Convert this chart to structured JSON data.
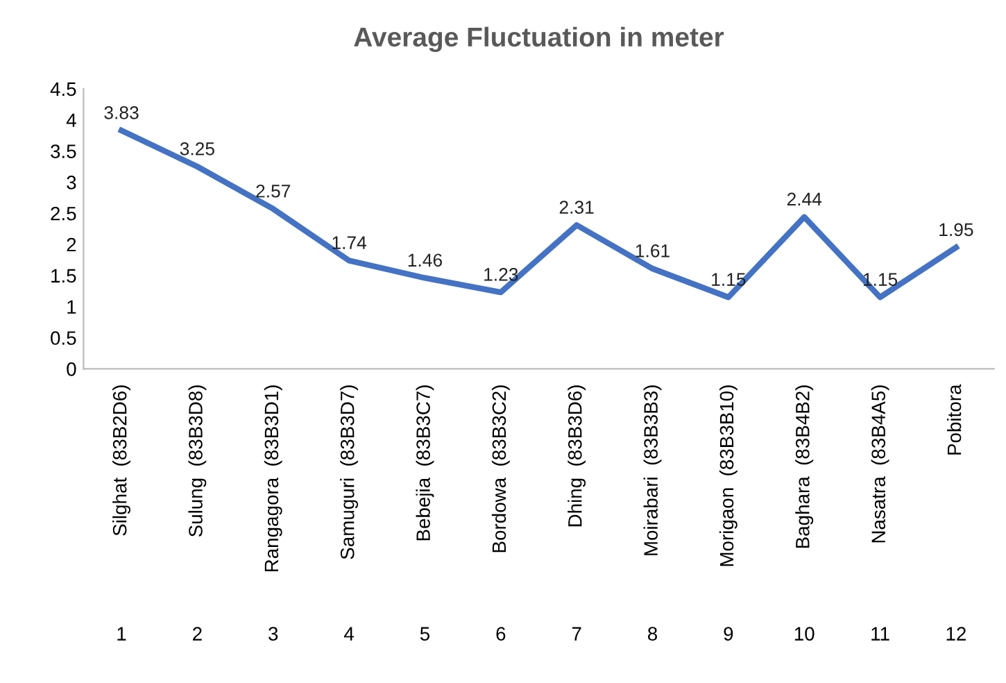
{
  "chart_data": {
    "type": "line",
    "title": "Average Fluctuation in meter",
    "categories": [
      "Silghat  (83B2D6)",
      "Sulung  (83B3D8)",
      "Rangagora  (83B3D1)",
      "Samuguri  (83B3D7)",
      "Bebejia  (83B3C7)",
      "Bordowa  (83B3C2)",
      "Dhing  (83B3D6)",
      "Moirabari  (83B3B3)",
      "Morigaon  (83B3B10)",
      "Baghara  (83B4B2)",
      "Nasatra  (83B4A5)",
      "Pobitora"
    ],
    "annotations": [
      "1",
      "2",
      "3",
      "4",
      "5",
      "6",
      "7",
      "8",
      "9",
      "10",
      "11",
      "12"
    ],
    "series": [
      {
        "color": "#4472c4",
        "values": [
          3.83,
          3.25,
          2.57,
          1.74,
          1.46,
          1.23,
          2.31,
          1.61,
          1.15,
          2.44,
          1.15,
          1.95
        ]
      }
    ],
    "ylim": [
      0,
      4.5
    ],
    "yticks": [
      0,
      0.5,
      1,
      1.5,
      2,
      2.5,
      3,
      3.5,
      4,
      4.5
    ],
    "data_labels": true,
    "grid": false,
    "marker": "none",
    "line_style": "solid"
  }
}
